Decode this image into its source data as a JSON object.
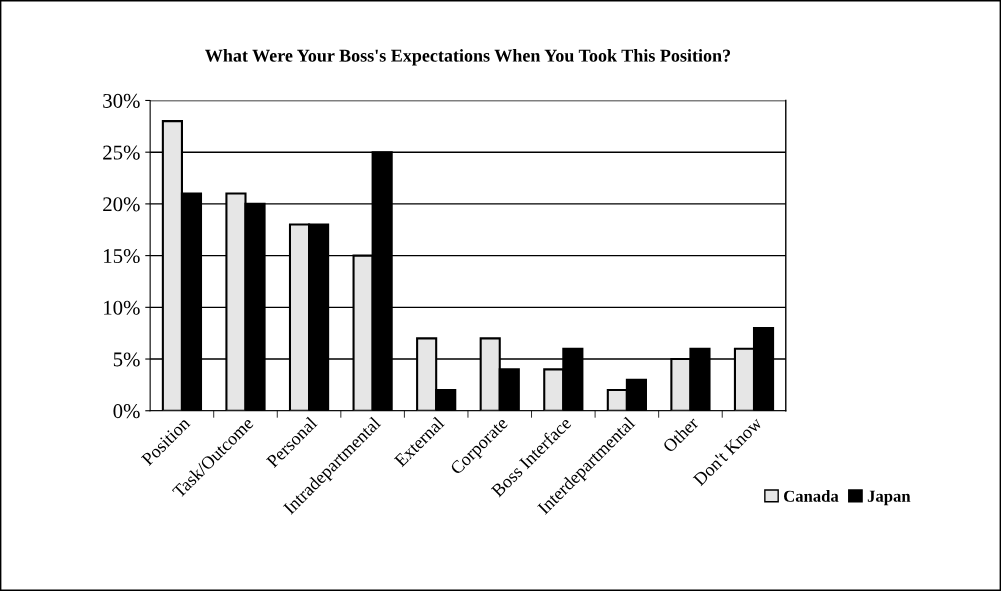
{
  "chart_data": {
    "type": "bar",
    "title": "What Were Your Boss's Expectations When You Took This Position?",
    "categories": [
      "Position",
      "Task/Outcome",
      "Personal",
      "Intradepartmental",
      "External",
      "Corporate",
      "Boss Interface",
      "Interdepartmental",
      "Other",
      "Don't Know"
    ],
    "series": [
      {
        "name": "Canada",
        "color": "#e6e6e6",
        "values": [
          28,
          21,
          18,
          15,
          7,
          7,
          4,
          2,
          5,
          6
        ]
      },
      {
        "name": "Japan",
        "color": "#000000",
        "values": [
          21,
          20,
          18,
          25,
          2,
          4,
          6,
          3,
          6,
          8
        ]
      }
    ],
    "ylim": [
      0,
      30
    ],
    "yticks": [
      {
        "value": 0,
        "label": "0%"
      },
      {
        "value": 5,
        "label": "5%"
      },
      {
        "value": 10,
        "label": "10%"
      },
      {
        "value": 15,
        "label": "15%"
      },
      {
        "value": 20,
        "label": "20%"
      },
      {
        "value": 25,
        "label": "25%"
      },
      {
        "value": 30,
        "label": "30%"
      }
    ],
    "grid": "y",
    "legend": "bottom right"
  }
}
